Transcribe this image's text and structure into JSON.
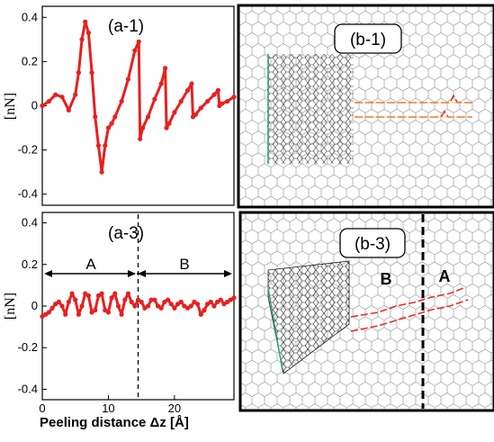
{
  "chart_data": [
    {
      "type": "line",
      "panel_label": "(a-1)",
      "ylabel": "[nN]",
      "xlim": [
        0,
        29
      ],
      "ylim": [
        -0.45,
        0.45
      ],
      "yticks": [
        "0.4",
        "0.2",
        "0",
        "-0.2",
        "-0.4"
      ],
      "ytick_values": [
        0.4,
        0.2,
        0,
        -0.2,
        -0.4
      ],
      "color": "#e82020",
      "x": [
        0,
        1,
        2,
        3,
        4,
        5,
        5.5,
        6,
        6.5,
        7,
        7.5,
        8,
        8.5,
        9,
        9.5,
        10,
        10.5,
        11,
        12,
        13,
        14,
        14.6,
        14.8,
        15.2,
        16,
        17,
        18,
        18.6,
        18.8,
        19.2,
        20,
        21,
        22,
        22.6,
        22.8,
        23.2,
        24,
        25,
        26,
        26.6,
        26.8,
        27.2,
        28,
        29
      ],
      "values": [
        0.0,
        0.02,
        0.05,
        0.04,
        -0.02,
        0.05,
        0.15,
        0.3,
        0.38,
        0.33,
        0.15,
        -0.05,
        -0.18,
        -0.3,
        -0.18,
        -0.1,
        -0.08,
        -0.05,
        0.02,
        0.12,
        0.25,
        0.29,
        -0.15,
        -0.1,
        -0.05,
        0.03,
        0.1,
        0.17,
        -0.1,
        -0.08,
        -0.03,
        0.02,
        0.07,
        0.1,
        -0.05,
        -0.04,
        -0.01,
        0.02,
        0.05,
        0.07,
        0.0,
        0.01,
        0.02,
        0.04
      ]
    },
    {
      "type": "line",
      "panel_label": "(a-3)",
      "ylabel": "[nN]",
      "xlabel": "Peeling distance Δz [Å]",
      "xlim": [
        0,
        29
      ],
      "ylim": [
        -0.45,
        0.45
      ],
      "yticks": [
        "0.4",
        "0.2",
        "0",
        "-0.2",
        "-0.4"
      ],
      "ytick_values": [
        0.4,
        0.2,
        0,
        -0.2,
        -0.4
      ],
      "xticks": [
        "0",
        "10",
        "20"
      ],
      "xtick_values": [
        0,
        10,
        20
      ],
      "color": "#e82020",
      "divider_x": 14.5,
      "regions": [
        "A",
        "B"
      ],
      "x": [
        0,
        0.5,
        1,
        1.5,
        2,
        2.5,
        3,
        3.5,
        4,
        4.5,
        5,
        5.5,
        6,
        6.5,
        7,
        7.5,
        8,
        8.5,
        9,
        9.5,
        10,
        10.5,
        11,
        11.5,
        12,
        12.5,
        13,
        13.5,
        14,
        14.5,
        15,
        15.5,
        16,
        16.5,
        17,
        17.5,
        18,
        18.5,
        19,
        19.5,
        20,
        20.5,
        21,
        21.5,
        22,
        22.5,
        23,
        23.5,
        24,
        24.5,
        25,
        25.5,
        26,
        26.5,
        27,
        27.5,
        28,
        28.5,
        29
      ],
      "values": [
        -0.05,
        -0.04,
        -0.03,
        -0.01,
        0.01,
        0.02,
        0.0,
        -0.04,
        0.02,
        0.06,
        0.03,
        -0.04,
        0.0,
        0.06,
        0.05,
        -0.03,
        -0.02,
        0.05,
        0.06,
        -0.02,
        -0.03,
        0.04,
        0.06,
        0.0,
        -0.04,
        0.03,
        0.06,
        0.02,
        0.0,
        0.03,
        0.02,
        -0.01,
        0.0,
        0.03,
        0.03,
        0.0,
        -0.01,
        0.02,
        0.03,
        0.01,
        -0.01,
        0.01,
        0.02,
        0.0,
        -0.01,
        0.0,
        0.02,
        0.01,
        -0.04,
        -0.02,
        0.01,
        0.02,
        0.0,
        0.02,
        0.03,
        0.01,
        0.02,
        0.03,
        0.04
      ]
    }
  ],
  "panels": {
    "b1_label": "(b-1)",
    "b3_label": "(b-3)",
    "b3_region_b": "B",
    "b3_region_a": "A"
  }
}
